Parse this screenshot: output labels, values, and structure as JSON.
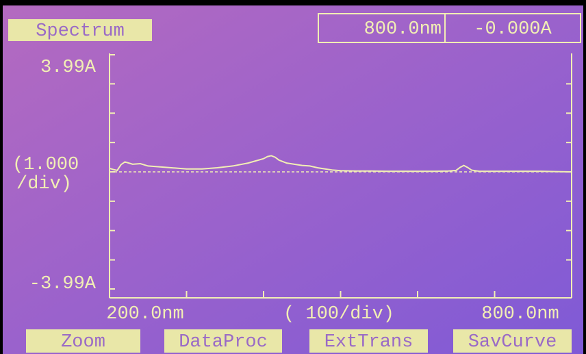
{
  "header": {
    "title": "Spectrum",
    "wavelength": "800.0nm",
    "absorbance": "-0.000A"
  },
  "chart_data": {
    "type": "line",
    "y_scale_label": [
      "(1.000",
      "/div)"
    ],
    "x_scale_label": "( 100/div)",
    "x": [
      200,
      205,
      210,
      215,
      220,
      225,
      230,
      240,
      250,
      260,
      280,
      300,
      320,
      340,
      360,
      380,
      400,
      405,
      410,
      415,
      420,
      430,
      440,
      450,
      460,
      470,
      480,
      490,
      500,
      520,
      540,
      560,
      580,
      600,
      620,
      640,
      650,
      655,
      660,
      665,
      670,
      680,
      700,
      720,
      740,
      760,
      780,
      800
    ],
    "series": [
      {
        "color": "#f2efb4",
        "values": [
          0.12,
          0.08,
          0.05,
          0.25,
          0.34,
          0.3,
          0.26,
          0.28,
          0.2,
          0.18,
          0.14,
          0.1,
          0.1,
          0.14,
          0.2,
          0.3,
          0.45,
          0.52,
          0.55,
          0.5,
          0.4,
          0.3,
          0.26,
          0.22,
          0.2,
          0.14,
          0.1,
          0.06,
          0.04,
          0.03,
          0.03,
          0.02,
          0.02,
          0.02,
          0.02,
          0.03,
          0.05,
          0.15,
          0.22,
          0.15,
          0.06,
          0.02,
          0.02,
          0.02,
          0.02,
          0.02,
          0.01,
          0.0
        ]
      }
    ],
    "xlim": [
      200,
      800
    ],
    "ylim": [
      -3.99,
      3.99
    ],
    "xticks": [
      {
        "value": 200,
        "label": "200.0nm"
      },
      {
        "value": 800,
        "label": "800.0nm"
      }
    ],
    "yticks": [
      {
        "value": 3.99,
        "label": "3.99A"
      },
      {
        "value": -3.99,
        "label": "-3.99A"
      }
    ],
    "x_minor_ticks": [
      300,
      400,
      500,
      600,
      700
    ],
    "y_minor_ticks": [
      -3,
      -2,
      -1,
      0,
      1,
      2,
      3
    ],
    "baseline": 0
  },
  "buttons": [
    "Zoom",
    "DataProc",
    "ExtTrans",
    "SavCurve"
  ]
}
